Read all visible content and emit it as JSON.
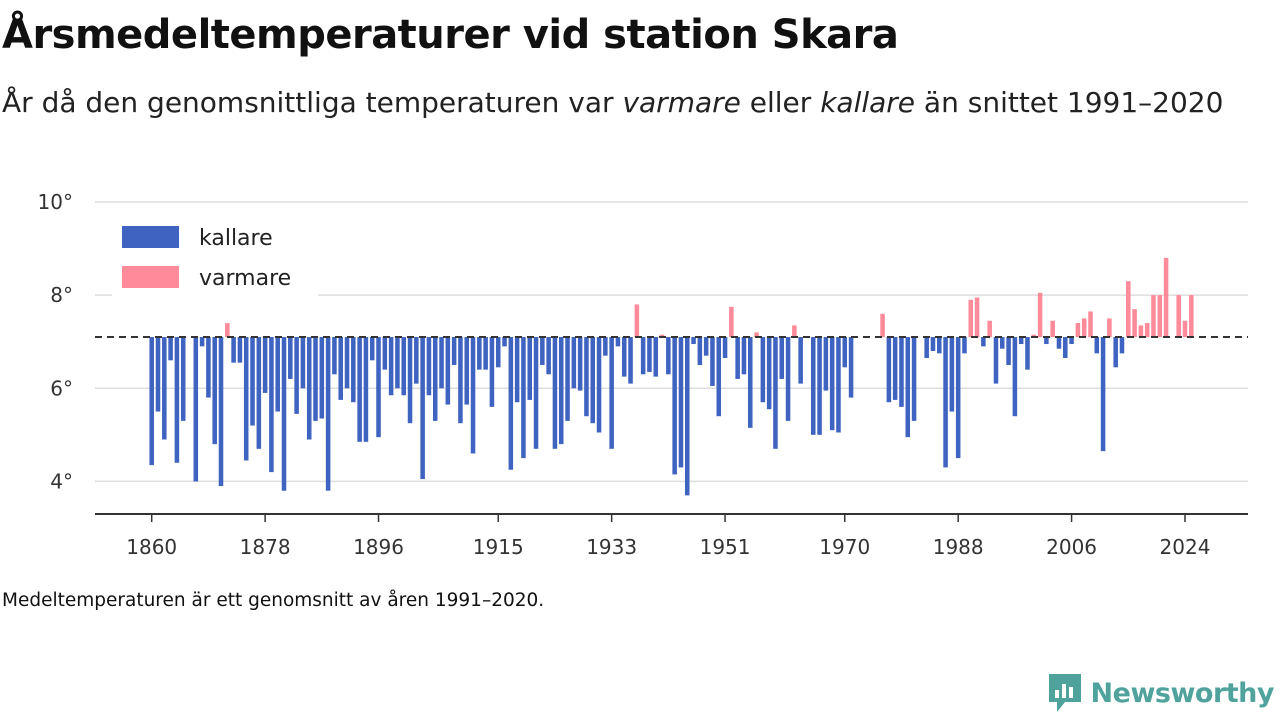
{
  "title": "Årsmedeltemperaturer vid station Skara",
  "subtitle": {
    "part1": "År då den genomsnittliga temperaturen var ",
    "warm_word": "varmare",
    "part2": " eller ",
    "cold_word": "kallare",
    "part3": " än snittet 1991–2020"
  },
  "footnote": "Medeltemperaturen är ett genomsnitt av åren 1991–2020.",
  "brand": "Newsworthy",
  "colors": {
    "cold": "#3f63c0",
    "warm": "#ff8a99",
    "grid": "#dddddd",
    "baseline": "#333333",
    "brand": "#4fa39c"
  },
  "chart_data": {
    "type": "bar",
    "baseline": 7.1,
    "ylim": [
      3.3,
      10
    ],
    "yticks": [
      4,
      6,
      8,
      10
    ],
    "ytick_labels": [
      "4°",
      "6°",
      "8°",
      "10°"
    ],
    "xlim": [
      1851,
      2034
    ],
    "xticks": [
      1860,
      1878,
      1896,
      1915,
      1933,
      1951,
      1970,
      1988,
      2006,
      2024
    ],
    "xtick_labels": [
      "1860",
      "1878",
      "1896",
      "1915",
      "1933",
      "1951",
      "1970",
      "1988",
      "2006",
      "2024"
    ],
    "legend": [
      {
        "label": "kallare",
        "color": "#3f63c0"
      },
      {
        "label": "varmare",
        "color": "#ff8a99"
      }
    ],
    "points": [
      [
        1860,
        4.35
      ],
      [
        1861,
        5.5
      ],
      [
        1862,
        4.9
      ],
      [
        1863,
        6.6
      ],
      [
        1864,
        4.4
      ],
      [
        1865,
        5.3
      ],
      [
        1867,
        4.0
      ],
      [
        1868,
        6.9
      ],
      [
        1869,
        5.8
      ],
      [
        1870,
        4.8
      ],
      [
        1871,
        3.9
      ],
      [
        1872,
        7.4
      ],
      [
        1873,
        6.55
      ],
      [
        1874,
        6.55
      ],
      [
        1875,
        4.45
      ],
      [
        1876,
        5.2
      ],
      [
        1877,
        4.7
      ],
      [
        1878,
        5.9
      ],
      [
        1879,
        4.2
      ],
      [
        1880,
        5.5
      ],
      [
        1881,
        3.8
      ],
      [
        1882,
        6.2
      ],
      [
        1883,
        5.45
      ],
      [
        1884,
        6.0
      ],
      [
        1885,
        4.9
      ],
      [
        1886,
        5.3
      ],
      [
        1887,
        5.35
      ],
      [
        1888,
        3.8
      ],
      [
        1889,
        6.3
      ],
      [
        1890,
        5.75
      ],
      [
        1891,
        6.0
      ],
      [
        1892,
        5.7
      ],
      [
        1893,
        4.85
      ],
      [
        1894,
        4.85
      ],
      [
        1895,
        6.6
      ],
      [
        1896,
        4.95
      ],
      [
        1897,
        6.4
      ],
      [
        1898,
        5.85
      ],
      [
        1899,
        6.0
      ],
      [
        1900,
        5.85
      ],
      [
        1901,
        5.25
      ],
      [
        1902,
        6.1
      ],
      [
        1903,
        4.05
      ],
      [
        1904,
        5.85
      ],
      [
        1905,
        5.3
      ],
      [
        1906,
        6.0
      ],
      [
        1907,
        5.65
      ],
      [
        1908,
        6.5
      ],
      [
        1909,
        5.25
      ],
      [
        1910,
        5.65
      ],
      [
        1911,
        4.6
      ],
      [
        1912,
        6.4
      ],
      [
        1913,
        6.4
      ],
      [
        1914,
        5.6
      ],
      [
        1915,
        6.45
      ],
      [
        1916,
        6.9
      ],
      [
        1917,
        4.25
      ],
      [
        1918,
        5.7
      ],
      [
        1919,
        4.5
      ],
      [
        1920,
        5.75
      ],
      [
        1921,
        4.7
      ],
      [
        1922,
        6.5
      ],
      [
        1923,
        6.3
      ],
      [
        1924,
        4.7
      ],
      [
        1925,
        4.8
      ],
      [
        1926,
        5.3
      ],
      [
        1927,
        6.0
      ],
      [
        1928,
        5.95
      ],
      [
        1929,
        5.4
      ],
      [
        1930,
        5.25
      ],
      [
        1931,
        5.05
      ],
      [
        1932,
        6.7
      ],
      [
        1933,
        4.7
      ],
      [
        1934,
        6.9
      ],
      [
        1935,
        6.25
      ],
      [
        1936,
        6.1
      ],
      [
        1937,
        7.8
      ],
      [
        1938,
        6.3
      ],
      [
        1939,
        6.35
      ],
      [
        1940,
        6.25
      ],
      [
        1941,
        7.15
      ],
      [
        1942,
        6.3
      ],
      [
        1943,
        4.15
      ],
      [
        1944,
        4.3
      ],
      [
        1945,
        3.7
      ],
      [
        1946,
        6.95
      ],
      [
        1947,
        6.5
      ],
      [
        1948,
        6.7
      ],
      [
        1949,
        6.05
      ],
      [
        1950,
        5.4
      ],
      [
        1951,
        6.65
      ],
      [
        1952,
        7.75
      ],
      [
        1953,
        6.2
      ],
      [
        1954,
        6.3
      ],
      [
        1955,
        5.15
      ],
      [
        1956,
        7.2
      ],
      [
        1957,
        5.7
      ],
      [
        1958,
        5.55
      ],
      [
        1959,
        4.7
      ],
      [
        1960,
        6.2
      ],
      [
        1961,
        5.3
      ],
      [
        1962,
        7.35
      ],
      [
        1963,
        6.1
      ],
      [
        1965,
        5.0
      ],
      [
        1966,
        5.0
      ],
      [
        1967,
        5.95
      ],
      [
        1968,
        5.1
      ],
      [
        1969,
        5.05
      ],
      [
        1970,
        6.45
      ],
      [
        1971,
        5.8
      ],
      [
        1976,
        7.6
      ],
      [
        1977,
        5.7
      ],
      [
        1978,
        5.75
      ],
      [
        1979,
        5.6
      ],
      [
        1980,
        4.95
      ],
      [
        1981,
        5.3
      ],
      [
        1983,
        6.65
      ],
      [
        1984,
        6.8
      ],
      [
        1985,
        6.75
      ],
      [
        1986,
        4.3
      ],
      [
        1987,
        5.5
      ],
      [
        1988,
        4.5
      ],
      [
        1989,
        6.75
      ],
      [
        1990,
        7.9
      ],
      [
        1991,
        7.95
      ],
      [
        1992,
        6.9
      ],
      [
        1993,
        7.45
      ],
      [
        1994,
        6.1
      ],
      [
        1995,
        6.85
      ],
      [
        1996,
        6.5
      ],
      [
        1997,
        5.4
      ],
      [
        1998,
        6.95
      ],
      [
        1999,
        6.4
      ],
      [
        2000,
        7.15
      ],
      [
        2001,
        8.05
      ],
      [
        2002,
        6.95
      ],
      [
        2003,
        7.45
      ],
      [
        2004,
        6.85
      ],
      [
        2005,
        6.65
      ],
      [
        2006,
        6.95
      ],
      [
        2007,
        7.4
      ],
      [
        2008,
        7.5
      ],
      [
        2009,
        7.65
      ],
      [
        2010,
        6.75
      ],
      [
        2011,
        4.65
      ],
      [
        2012,
        7.5
      ],
      [
        2013,
        6.45
      ],
      [
        2014,
        6.75
      ],
      [
        2015,
        8.3
      ],
      [
        2016,
        7.7
      ],
      [
        2017,
        7.35
      ],
      [
        2018,
        7.4
      ],
      [
        2019,
        8.0
      ],
      [
        2020,
        8.0
      ],
      [
        2021,
        8.8
      ],
      [
        2023,
        8.0
      ],
      [
        2024,
        7.45
      ],
      [
        2025,
        8.0
      ]
    ]
  }
}
